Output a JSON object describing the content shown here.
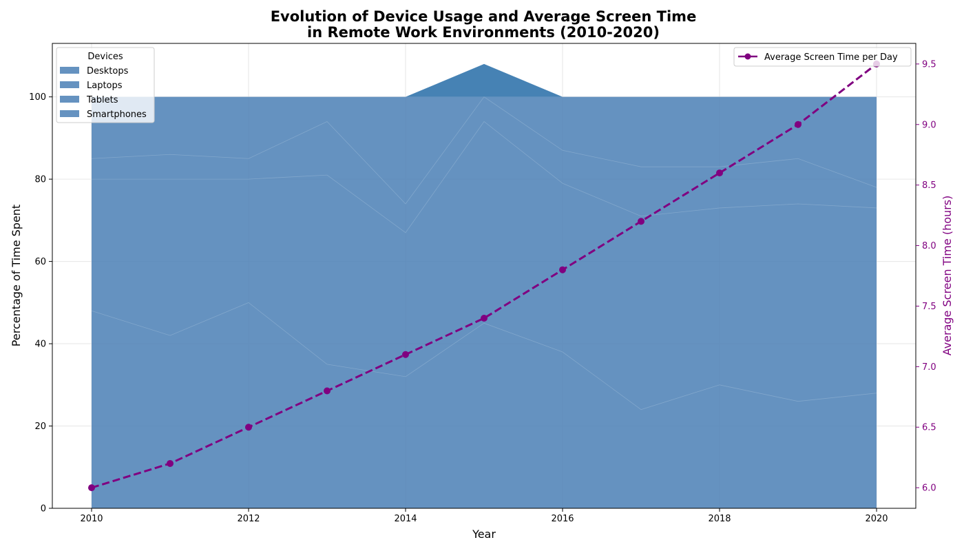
{
  "chart_data": {
    "type": "area",
    "title_line1": "Evolution of Device Usage and Average Screen Time",
    "title_line2": "in Remote Work Environments (2010-2020)",
    "xlabel": "Year",
    "ylabel_left": "Percentage of Time Spent",
    "ylabel_right": "Average Screen Time (hours)",
    "x": [
      2010,
      2011,
      2012,
      2013,
      2014,
      2015,
      2016,
      2017,
      2018,
      2019,
      2020
    ],
    "x_ticks": [
      2010,
      2012,
      2014,
      2016,
      2018,
      2020
    ],
    "xlim": [
      2009.5,
      2020.5
    ],
    "ylim_left": [
      0,
      113
    ],
    "y_ticks_left": [
      0,
      20,
      40,
      60,
      80,
      100
    ],
    "ylim_right": [
      5.83,
      9.67
    ],
    "y_ticks_right": [
      6.0,
      6.5,
      7.0,
      7.5,
      8.0,
      8.5,
      9.0,
      9.5
    ],
    "stack_layer_tops": [
      [
        48,
        42,
        50,
        35,
        32,
        45,
        38,
        24,
        30,
        26,
        28
      ],
      [
        80,
        80,
        80,
        81,
        67,
        94,
        79,
        71,
        73,
        74,
        73
      ],
      [
        85,
        86,
        85,
        94,
        74,
        100,
        87,
        83,
        83,
        85,
        78
      ],
      [
        100,
        100,
        100,
        100,
        100,
        108,
        100,
        100,
        100,
        100,
        100
      ]
    ],
    "area_series_legend": {
      "title": "Devices",
      "placement": "upper-left",
      "entries": [
        "Desktops",
        "Laptops",
        "Tablets",
        "Smartphones"
      ]
    },
    "line_series": {
      "name": "Average Screen Time per Day",
      "values": [
        6.0,
        6.2,
        6.5,
        6.8,
        7.1,
        7.4,
        7.8,
        8.2,
        8.6,
        9.0,
        9.5
      ],
      "legend_placement": "upper-right"
    },
    "grid": true,
    "colors": {
      "area": "#4a7fb5",
      "area_peak": "#4682b4",
      "line": "#800080",
      "right_axis": "#800080",
      "grid": "#e6e6e6"
    }
  }
}
